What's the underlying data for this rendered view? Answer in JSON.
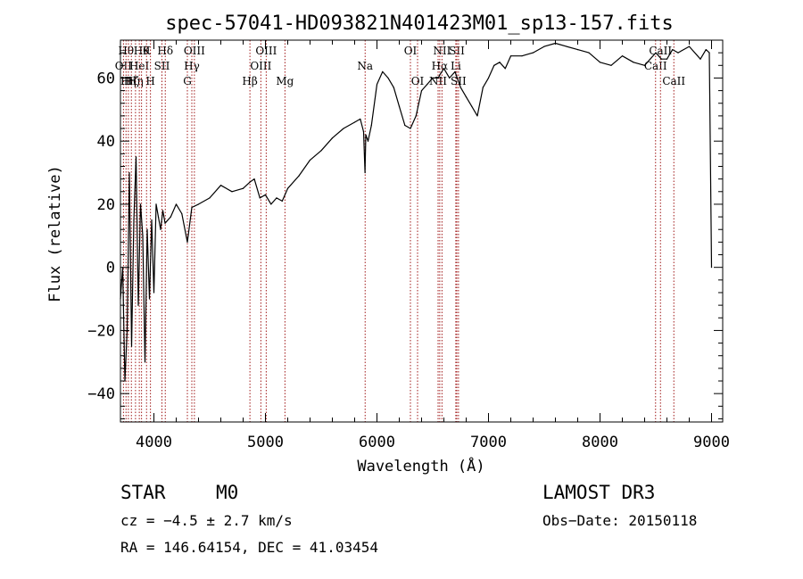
{
  "chart_data": {
    "type": "line",
    "title": "spec-57041-HD093821N401423M01_sp13-157.fits",
    "xlabel": "Wavelength (Å)",
    "ylabel": "Flux (relative)",
    "xlim": [
      3700,
      9100
    ],
    "ylim": [
      -49,
      72
    ],
    "x_ticks": [
      4000,
      5000,
      6000,
      7000,
      8000,
      9000
    ],
    "y_ticks": [
      -40,
      -20,
      0,
      20,
      40,
      60
    ],
    "grid": false,
    "series": [
      {
        "x": [
          3700,
          3720,
          3740,
          3760,
          3780,
          3800,
          3820,
          3840,
          3860,
          3880,
          3900,
          3920,
          3940,
          3960,
          3980,
          4000,
          4020,
          4040,
          4060,
          4080,
          4100,
          4150,
          4200,
          4250,
          4300,
          4340,
          4400,
          4500,
          4600,
          4700,
          4800,
          4860,
          4900,
          4950,
          5000,
          5050,
          5100,
          5150,
          5200,
          5300,
          5400,
          5500,
          5600,
          5700,
          5800,
          5850,
          5880,
          5893,
          5900,
          5920,
          5950,
          6000,
          6050,
          6100,
          6150,
          6200,
          6250,
          6300,
          6350,
          6400,
          6450,
          6500,
          6550,
          6563,
          6600,
          6650,
          6700,
          6750,
          6800,
          6850,
          6900,
          6950,
          7000,
          7050,
          7100,
          7150,
          7200,
          7300,
          7400,
          7500,
          7600,
          7700,
          7800,
          7900,
          8000,
          8100,
          8200,
          8300,
          8400,
          8500,
          8550,
          8600,
          8650,
          8700,
          8800,
          8900,
          8950,
          8980,
          9000
        ],
        "y": [
          -10,
          0,
          -36,
          -20,
          30,
          -25,
          15,
          35,
          -12,
          20,
          10,
          -30,
          12,
          -10,
          15,
          -8,
          20,
          16,
          12,
          18,
          14,
          16,
          20,
          17,
          8,
          19,
          20,
          22,
          26,
          24,
          25,
          27,
          28,
          22,
          23,
          20,
          22,
          21,
          25,
          29,
          34,
          37,
          41,
          44,
          46,
          47,
          43,
          30,
          42,
          40,
          45,
          58,
          62,
          60,
          57,
          51,
          45,
          44,
          48,
          56,
          58,
          60,
          60,
          61,
          63,
          60,
          62,
          57,
          54,
          51,
          48,
          57,
          60,
          64,
          65,
          63,
          67,
          67,
          68,
          70,
          71,
          70,
          69,
          68,
          65,
          64,
          67,
          65,
          64,
          68,
          66,
          66,
          69,
          68,
          70,
          66,
          69,
          68,
          0
        ]
      }
    ],
    "line_markers": [
      {
        "wavelength": 3727,
        "label": "OII",
        "row": 1
      },
      {
        "wavelength": 3750,
        "label": "Hθ",
        "row": 0
      },
      {
        "wavelength": 3771,
        "label": "Hη",
        "row": 2
      },
      {
        "wavelength": 3798,
        "label": "Hζ",
        "row": 2
      },
      {
        "wavelength": 3835,
        "label": "Hη",
        "row": 2
      },
      {
        "wavelength": 3869,
        "label": "HeI",
        "row": 1
      },
      {
        "wavelength": 3889,
        "label": "Hθ",
        "row": 0
      },
      {
        "wavelength": 3934,
        "label": "K",
        "row": 0
      },
      {
        "wavelength": 3969,
        "label": "H",
        "row": 2
      },
      {
        "wavelength": 4072,
        "label": "SII",
        "row": 1
      },
      {
        "wavelength": 4102,
        "label": "Hδ",
        "row": 0
      },
      {
        "wavelength": 4300,
        "label": "G",
        "row": 2
      },
      {
        "wavelength": 4340,
        "label": "Hγ",
        "row": 1
      },
      {
        "wavelength": 4363,
        "label": "OIII",
        "row": 0
      },
      {
        "wavelength": 4861,
        "label": "Hβ",
        "row": 2
      },
      {
        "wavelength": 4959,
        "label": "OIII",
        "row": 1
      },
      {
        "wavelength": 5007,
        "label": "OIII",
        "row": 0
      },
      {
        "wavelength": 5175,
        "label": "Mg",
        "row": 2
      },
      {
        "wavelength": 5894,
        "label": "Na",
        "row": 1
      },
      {
        "wavelength": 6300,
        "label": "OI",
        "row": 0
      },
      {
        "wavelength": 6364,
        "label": "OI",
        "row": 2
      },
      {
        "wavelength": 6548,
        "label": "NII",
        "row": 2
      },
      {
        "wavelength": 6563,
        "label": "Hα",
        "row": 1
      },
      {
        "wavelength": 6583,
        "label": "NII",
        "row": 0
      },
      {
        "wavelength": 6707,
        "label": "Li",
        "row": 1
      },
      {
        "wavelength": 6716,
        "label": "SII",
        "row": 0
      },
      {
        "wavelength": 6731,
        "label": "SII",
        "row": 2
      },
      {
        "wavelength": 8498,
        "label": "CaII",
        "row": 1
      },
      {
        "wavelength": 8542,
        "label": "CaII",
        "row": 0
      },
      {
        "wavelength": 8662,
        "label": "CaII",
        "row": 2
      }
    ],
    "colors": {
      "spectrum": "#000000",
      "markers": "#a01818"
    }
  },
  "info": {
    "object_class": "STAR",
    "subclass": "M0",
    "survey": "LAMOST DR3",
    "cz": "cz = −4.5 ± 2.7 km/s",
    "obs_date": "Obs−Date: 20150118",
    "coords": "RA = 146.64154, DEC =  41.03454"
  }
}
